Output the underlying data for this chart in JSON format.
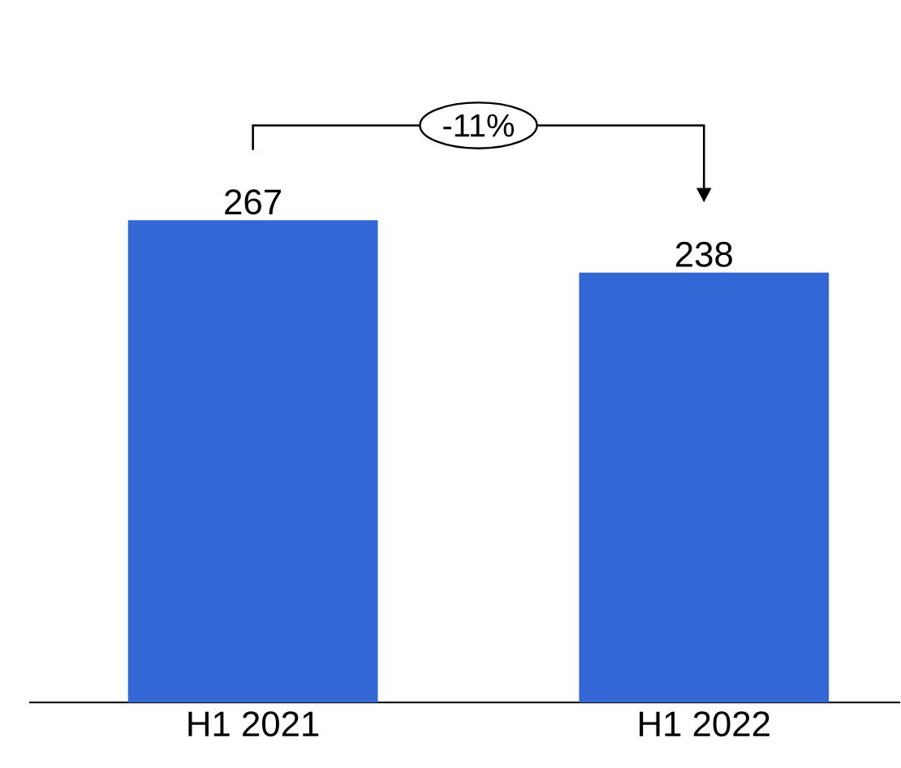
{
  "chart_data": {
    "type": "bar",
    "categories": [
      "H1 2021",
      "H1 2022"
    ],
    "values": [
      267,
      238
    ],
    "color": "#3367d6",
    "data_labels": true,
    "annotations": [
      "-11%"
    ]
  }
}
